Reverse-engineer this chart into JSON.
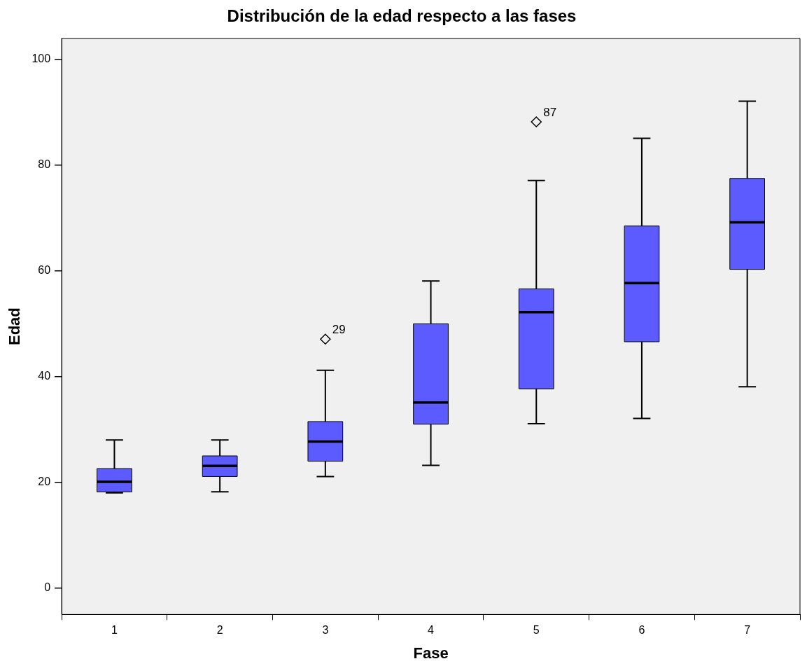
{
  "chart_data": {
    "type": "box",
    "title": "Distribución de la edad respecto a las fases",
    "xlabel": "Fase",
    "ylabel": "Edad",
    "categories": [
      "1",
      "2",
      "3",
      "4",
      "5",
      "6",
      "7"
    ],
    "color": "#5b5bff",
    "boxes": [
      {
        "low": 18,
        "q1": 18.2,
        "median": 20.1,
        "q3": 22.6,
        "high": 28
      },
      {
        "low": 18.2,
        "q1": 21.1,
        "median": 23.1,
        "q3": 25,
        "high": 28
      },
      {
        "low": 21.1,
        "q1": 24,
        "median": 27.7,
        "q3": 31.5,
        "high": 41.2,
        "outliers": [
          47.1
        ]
      },
      {
        "low": 23.2,
        "q1": 31,
        "median": 35.1,
        "q3": 50,
        "high": 58.1
      },
      {
        "low": 31.1,
        "q1": 37.7,
        "median": 52.2,
        "q3": 56.6,
        "high": 77.1,
        "outliers": [
          88.2
        ]
      },
      {
        "low": 32.1,
        "q1": 46.6,
        "median": 57.7,
        "q3": 68.5,
        "high": 85.1
      },
      {
        "low": 38.1,
        "q1": 60.3,
        "median": 69.2,
        "q3": 77.5,
        "high": 92.1
      }
    ],
    "annotations": [
      "29",
      "87"
    ],
    "ylim": [
      -5,
      104
    ],
    "yticks": [
      0,
      20,
      40,
      60,
      80,
      100
    ],
    "grid": false,
    "legend": false
  }
}
